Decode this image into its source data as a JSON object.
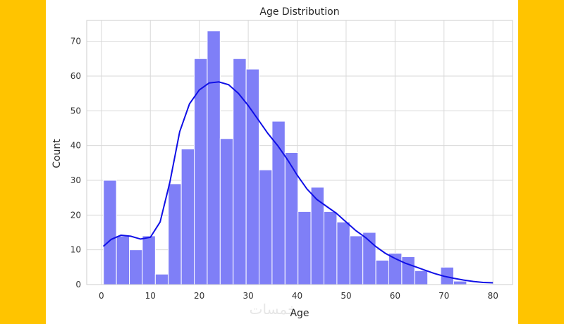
{
  "chart_data": {
    "type": "bar",
    "title": "Age Distribution",
    "xlabel": "Age",
    "ylabel": "Count",
    "xlim": [
      -3,
      84
    ],
    "ylim": [
      0,
      76
    ],
    "xticks": [
      0,
      10,
      20,
      30,
      40,
      50,
      60,
      70,
      80
    ],
    "yticks": [
      0,
      10,
      20,
      30,
      40,
      50,
      60,
      70
    ],
    "grid": true,
    "bin_width": 2.65,
    "bin_start": 0.42,
    "counts": [
      30,
      14,
      10,
      14,
      3,
      29,
      39,
      65,
      73,
      42,
      65,
      62,
      33,
      47,
      38,
      21,
      28,
      21,
      18,
      14,
      15,
      7,
      9,
      8,
      4,
      0,
      5,
      1,
      0
    ],
    "bar_color": "#7f7ff7",
    "kde": {
      "color": "#1010e6",
      "x": [
        0.4,
        2,
        4,
        6,
        8,
        10,
        12,
        14,
        16,
        18,
        20,
        22,
        24,
        26,
        28,
        30,
        32,
        34,
        36,
        38,
        40,
        42,
        44,
        46,
        48,
        50,
        52,
        54,
        56,
        58,
        60,
        62,
        64,
        66,
        68,
        70,
        72,
        74,
        76,
        78,
        80
      ],
      "y": [
        11,
        13,
        14.2,
        13.9,
        13.1,
        13.6,
        18,
        29.5,
        44,
        52,
        56,
        58,
        58.3,
        57.5,
        55,
        51.5,
        47.5,
        43.5,
        40,
        36,
        31.5,
        27.5,
        24.5,
        22.5,
        20.5,
        18,
        15.5,
        13.5,
        11,
        9,
        7.5,
        6.2,
        5.2,
        4.2,
        3.2,
        2.4,
        1.8,
        1.3,
        0.9,
        0.6,
        0.5
      ]
    }
  },
  "watermark": "خمسات"
}
